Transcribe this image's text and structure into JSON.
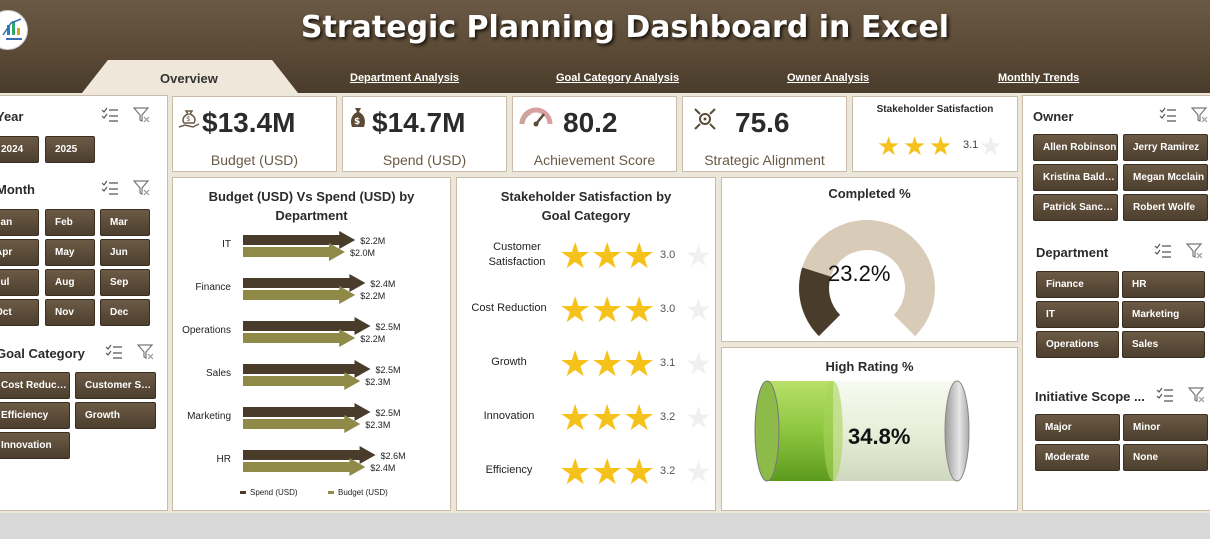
{
  "header": {
    "title": "Strategic Planning Dashboard in Excel",
    "tabs": [
      {
        "label": "Overview",
        "active": true
      },
      {
        "label": "Department Analysis"
      },
      {
        "label": "Goal Category Analysis"
      },
      {
        "label": "Owner Analysis"
      },
      {
        "label": "Monthly Trends"
      }
    ]
  },
  "colors": {
    "accent": "#5a4a36",
    "gold": "#f5c21b",
    "budget": "#8f8a47",
    "spend": "#4a3c2b",
    "cream": "#d8cbb8",
    "green": "#8dc63f"
  },
  "slicers": {
    "year": {
      "title": "Year",
      "items": [
        "2024",
        "2025"
      ]
    },
    "month": {
      "title": "Month",
      "items": [
        "Jan",
        "Feb",
        "Mar",
        "Apr",
        "May",
        "Jun",
        "Jul",
        "Aug",
        "Sep",
        "Oct",
        "Nov",
        "Dec"
      ]
    },
    "goal_category": {
      "title": "Goal Category",
      "items": [
        "Cost Reduction",
        "Customer Satisfaction",
        "Efficiency",
        "Growth",
        "Innovation"
      ]
    },
    "owner": {
      "title": "Owner",
      "items": [
        "Allen Robinson",
        "Jerry Ramirez",
        "Kristina Baldwin",
        "Megan Mcclain",
        "Patrick Sanchez",
        "Robert Wolfe"
      ]
    },
    "department": {
      "title": "Department",
      "items": [
        "Finance",
        "HR",
        "IT",
        "Marketing",
        "Operations",
        "Sales"
      ]
    },
    "initiative_scope": {
      "title": "Initiative Scope ...",
      "items": [
        "Major",
        "Minor",
        "Moderate",
        "None"
      ]
    }
  },
  "kpis": {
    "budget": {
      "value": "$13.4M",
      "label": "Budget (USD)",
      "icon": "money-bag-hand-icon"
    },
    "spend": {
      "value": "$14.7M",
      "label": "Spend (USD)",
      "icon": "money-bag-icon"
    },
    "achievement": {
      "value": "80.2",
      "label": "Achievement Score",
      "icon": "gauge-icon"
    },
    "alignment": {
      "value": "75.6",
      "label": "Strategic Alignment",
      "icon": "target-icon"
    },
    "satisfaction": {
      "title": "Stakeholder Satisfaction",
      "value": "3.1",
      "rating": 3.1
    }
  },
  "chart_data": [
    {
      "type": "bar",
      "title": "Budget (USD) Vs Spend (USD) by Department",
      "categories": [
        "IT",
        "Finance",
        "Operations",
        "Sales",
        "Marketing",
        "HR"
      ],
      "series": [
        {
          "name": "Spend (USD)",
          "values": [
            2.2,
            2.4,
            2.5,
            2.5,
            2.5,
            2.6
          ],
          "labels": [
            "$2.2M",
            "$2.4M",
            "$2.5M",
            "$2.5M",
            "$2.5M",
            "$2.6M"
          ]
        },
        {
          "name": "Budget (USD)",
          "values": [
            2.0,
            2.2,
            2.2,
            2.3,
            2.3,
            2.4
          ],
          "labels": [
            "$2.0M",
            "$2.2M",
            "$2.2M",
            "$2.3M",
            "$2.3M",
            "$2.4M"
          ]
        }
      ]
    },
    {
      "type": "bar",
      "title": "Stakeholder Satisfaction by Goal Category",
      "categories": [
        "Customer Satisfaction",
        "Cost Reduction",
        "Growth",
        "Innovation",
        "Efficiency"
      ],
      "values": [
        3.0,
        3.0,
        3.1,
        3.2,
        3.2
      ],
      "labels": [
        "3.0",
        "3.0",
        "3.1",
        "3.2",
        "3.2"
      ],
      "max": 4
    },
    {
      "type": "pie",
      "title": "Completed %",
      "value": 23.2,
      "label": "23.2%"
    },
    {
      "type": "bar",
      "title": "High Rating %",
      "value": 34.8,
      "label": "34.8%"
    }
  ]
}
